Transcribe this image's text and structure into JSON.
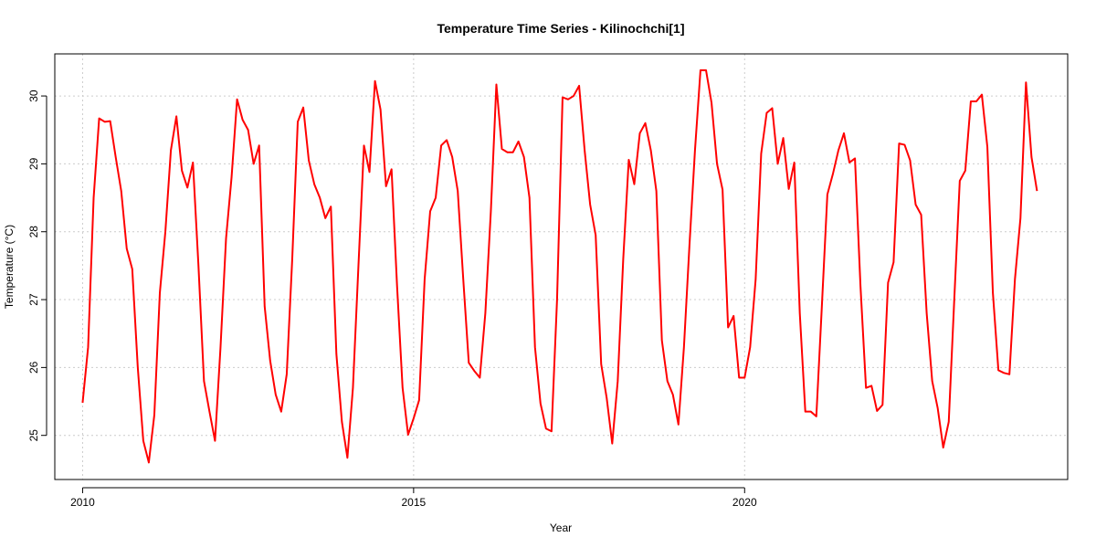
{
  "chart_data": {
    "type": "line",
    "title": "Temperature Time Series - Kilinochchi[1]",
    "xlabel": "Year",
    "ylabel": "Temperature (°C)",
    "xlim": [
      2009.58,
      2024.88
    ],
    "ylim": [
      24.35,
      30.62
    ],
    "x_ticks": [
      2010,
      2015,
      2020
    ],
    "x_tick_labels": [
      "2010",
      "2015",
      "2020"
    ],
    "y_ticks": [
      25,
      26,
      27,
      28,
      29,
      30
    ],
    "y_tick_labels": [
      "25",
      "26",
      "27",
      "28",
      "29",
      "30"
    ],
    "grid": true,
    "line_color": "#ff0000",
    "series": [
      {
        "x_start": 2010,
        "x_step": 0.08333333,
        "values": [
          25.48,
          26.3,
          28.5,
          29.67,
          29.62,
          29.63,
          29.1,
          28.6,
          27.75,
          27.45,
          26.0,
          24.92,
          24.6,
          25.3,
          27.1,
          28.0,
          29.2,
          29.7,
          28.9,
          28.65,
          29.02,
          27.5,
          25.8,
          25.35,
          24.92,
          26.3,
          27.9,
          28.8,
          29.95,
          29.65,
          29.5,
          29.0,
          29.27,
          26.9,
          26.1,
          25.6,
          25.35,
          25.9,
          27.6,
          29.62,
          29.83,
          29.05,
          28.7,
          28.5,
          28.2,
          28.37,
          26.2,
          25.2,
          24.67,
          25.7,
          27.5,
          29.27,
          28.88,
          30.22,
          29.8,
          28.67,
          28.92,
          27.2,
          25.7,
          25.01,
          25.25,
          25.52,
          27.3,
          28.3,
          28.5,
          29.27,
          29.35,
          29.1,
          28.6,
          27.3,
          26.07,
          25.95,
          25.85,
          26.8,
          28.3,
          30.17,
          29.22,
          29.17,
          29.17,
          29.33,
          29.1,
          28.5,
          26.3,
          25.47,
          25.1,
          25.06,
          27.0,
          29.98,
          29.95,
          30.0,
          30.15,
          29.2,
          28.4,
          27.95,
          26.05,
          25.55,
          24.88,
          25.8,
          27.6,
          29.06,
          28.7,
          29.45,
          29.6,
          29.2,
          28.6,
          26.4,
          25.8,
          25.6,
          25.16,
          26.3,
          27.8,
          29.2,
          30.38,
          30.38,
          29.9,
          29.0,
          28.62,
          26.59,
          26.76,
          25.85,
          25.85,
          26.3,
          27.3,
          29.15,
          29.75,
          29.82,
          29.0,
          29.38,
          28.63,
          29.02,
          26.8,
          25.35,
          25.35,
          25.28,
          26.9,
          28.55,
          28.85,
          29.2,
          29.45,
          29.02,
          29.08,
          27.2,
          25.7,
          25.73,
          25.36,
          25.45,
          27.25,
          27.55,
          29.3,
          29.28,
          29.05,
          28.4,
          28.25,
          26.8,
          25.8,
          25.4,
          24.82,
          25.2,
          27.0,
          28.75,
          28.9,
          29.92,
          29.92,
          30.02,
          29.25,
          27.1,
          25.96,
          25.92,
          25.9,
          27.3,
          28.2,
          30.2,
          29.1,
          28.6
        ]
      }
    ]
  }
}
